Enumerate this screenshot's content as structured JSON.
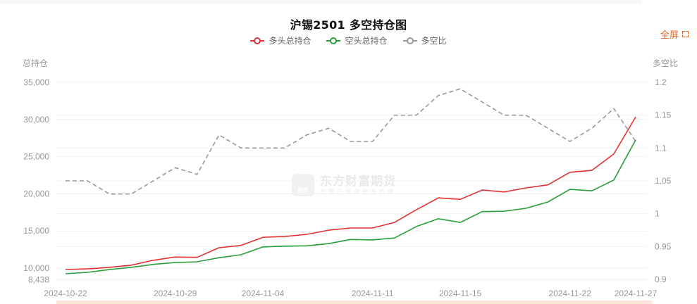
{
  "header": {
    "title": "沪锡2501 多空持仓图",
    "fullscreen_label": "全屏"
  },
  "legend": [
    {
      "label": "多头总持仓",
      "color": "#e03232"
    },
    {
      "label": "空头总持仓",
      "color": "#2a9d3c"
    },
    {
      "label": "多空比",
      "color": "#999999"
    }
  ],
  "axes": {
    "left_name": "总持仓",
    "right_name": "多空比",
    "left_ticks": [
      "35,000",
      "30,000",
      "25,000",
      "20,000",
      "15,000",
      "10,000",
      "8,438"
    ],
    "right_ticks": [
      "1.2",
      "1.15",
      "1.1",
      "1.05",
      "1",
      "0.95",
      "0.9"
    ],
    "x_ticks": [
      "2024-10-22",
      "2024-10-29",
      "2024-11-04",
      "2024-11-11",
      "2024-11-15",
      "2024-11-22",
      "2024-11-27"
    ]
  },
  "watermark": {
    "brand": "东方财富期货",
    "slogan": "为用户创造更多价值",
    "logo_text": "期货"
  },
  "chart_data": {
    "type": "line",
    "title": "沪锡2501 多空持仓图",
    "xlabel": "",
    "ylabel": "总持仓",
    "y2label": "多空比",
    "ylim": [
      8438,
      35000
    ],
    "y2lim": [
      0.9,
      1.2
    ],
    "grid": true,
    "legend_position": "top",
    "x": [
      "2024-10-22",
      "2024-10-23",
      "2024-10-24",
      "2024-10-25",
      "2024-10-28",
      "2024-10-29",
      "2024-10-30",
      "2024-10-31",
      "2024-11-01",
      "2024-11-04",
      "2024-11-05",
      "2024-11-06",
      "2024-11-07",
      "2024-11-08",
      "2024-11-11",
      "2024-11-12",
      "2024-11-13",
      "2024-11-14",
      "2024-11-15",
      "2024-11-18",
      "2024-11-19",
      "2024-11-20",
      "2024-11-21",
      "2024-11-22",
      "2024-11-25",
      "2024-11-26",
      "2024-11-27"
    ],
    "series": [
      {
        "name": "多头总持仓",
        "axis": "left",
        "color": "#e03232",
        "style": "solid",
        "values": [
          9810,
          9900,
          10100,
          10400,
          11050,
          11500,
          11450,
          12750,
          13050,
          14150,
          14250,
          14550,
          15100,
          15400,
          15400,
          16150,
          17850,
          19450,
          19250,
          20500,
          20250,
          20800,
          21200,
          22900,
          23150,
          25350,
          30350
        ]
      },
      {
        "name": "空头总持仓",
        "axis": "left",
        "color": "#2a9d3c",
        "style": "solid",
        "values": [
          9240,
          9430,
          9800,
          10100,
          10500,
          10750,
          10850,
          11400,
          11800,
          12850,
          12950,
          13000,
          13300,
          13850,
          13800,
          14050,
          15600,
          16650,
          16150,
          17600,
          17650,
          18050,
          18900,
          20600,
          20400,
          21850,
          27250
        ]
      },
      {
        "name": "多空比",
        "axis": "right",
        "color": "#999999",
        "style": "dashed",
        "values": [
          1.05,
          1.05,
          1.03,
          1.03,
          1.05,
          1.07,
          1.06,
          1.12,
          1.1,
          1.1,
          1.1,
          1.12,
          1.13,
          1.11,
          1.11,
          1.15,
          1.15,
          1.18,
          1.19,
          1.17,
          1.15,
          1.15,
          1.13,
          1.11,
          1.13,
          1.16,
          1.11
        ]
      }
    ]
  }
}
